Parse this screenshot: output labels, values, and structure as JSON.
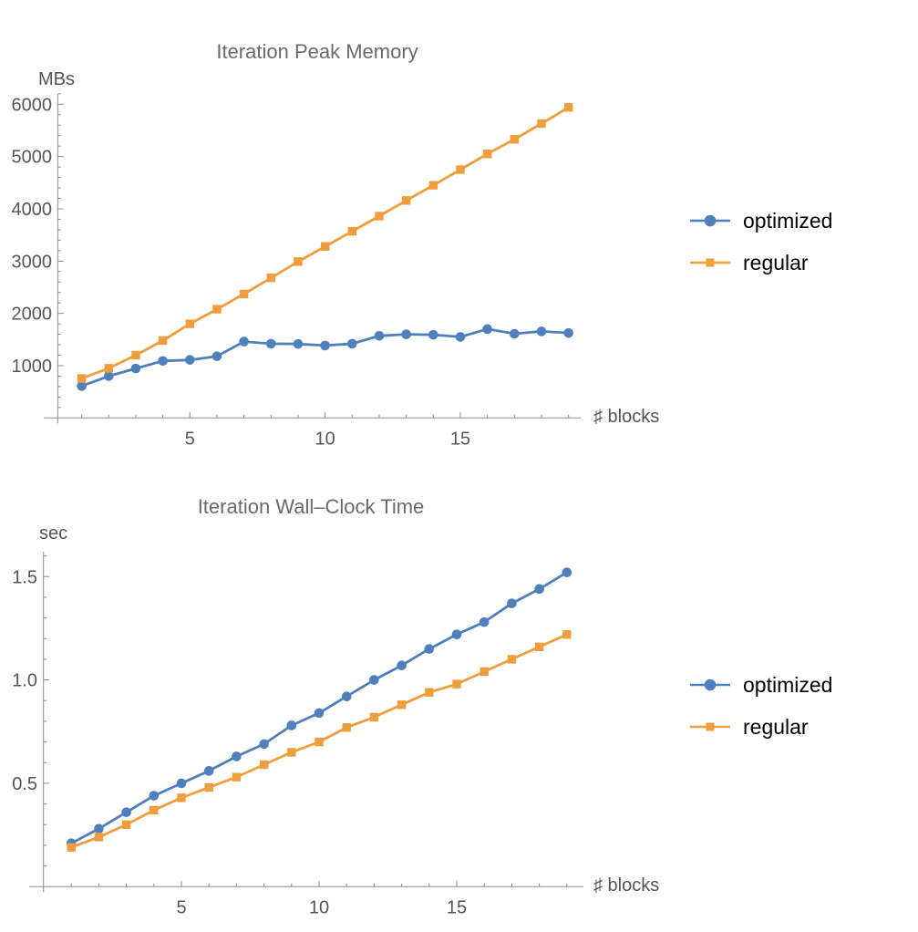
{
  "page": {
    "background": "#ffffff"
  },
  "colors": {
    "optimized": "#4f80bb",
    "regular": "#f09d3e",
    "axis": "#8b8b8b",
    "tick_text": "#565656",
    "title_text": "#6a6a6a",
    "legend_text": "#000000"
  },
  "chart_data": [
    {
      "type": "line",
      "title": "Iteration Peak Memory",
      "ylabel": "MBs",
      "xlabel": "♯ blocks",
      "x": [
        1,
        2,
        3,
        4,
        5,
        6,
        7,
        8,
        9,
        10,
        11,
        12,
        13,
        14,
        15,
        16,
        17,
        18,
        19
      ],
      "series": [
        {
          "name": "optimized",
          "marker": "circle",
          "color": "#4f80bb",
          "values": [
            610,
            800,
            945,
            1090,
            1110,
            1180,
            1460,
            1420,
            1415,
            1385,
            1420,
            1570,
            1600,
            1590,
            1550,
            1700,
            1610,
            1655,
            1625
          ]
        },
        {
          "name": "regular",
          "marker": "square",
          "color": "#f09d3e",
          "values": [
            755,
            950,
            1200,
            1480,
            1800,
            2080,
            2370,
            2680,
            2990,
            3280,
            3570,
            3860,
            4160,
            4450,
            4750,
            5050,
            5330,
            5630,
            5940
          ]
        }
      ],
      "axes": {
        "xticks_labeled": [
          5,
          10,
          15
        ],
        "xtick_labels": [
          "5",
          "10",
          "15"
        ],
        "ytick_minor_step": 200,
        "ytick_max": 6200,
        "yticks_labeled_values": [
          1000,
          2000,
          3000,
          4000,
          5000,
          6000
        ],
        "yticks_labeled": [
          "1000",
          "2000",
          "3000",
          "4000",
          "5000",
          "6000"
        ],
        "xlim": [
          0,
          19.6
        ],
        "ylim": [
          0,
          6200
        ],
        "grid": false
      },
      "legend": {
        "position": "right"
      }
    },
    {
      "type": "line",
      "title": "Iteration Wall–Clock Time",
      "ylabel": "sec",
      "xlabel": "♯ blocks",
      "x": [
        1,
        2,
        3,
        4,
        5,
        6,
        7,
        8,
        9,
        10,
        11,
        12,
        13,
        14,
        15,
        16,
        17,
        18,
        19
      ],
      "series": [
        {
          "name": "optimized",
          "marker": "circle",
          "color": "#4f80bb",
          "values": [
            0.21,
            0.28,
            0.36,
            0.44,
            0.5,
            0.56,
            0.63,
            0.69,
            0.78,
            0.84,
            0.92,
            1.0,
            1.07,
            1.15,
            1.22,
            1.28,
            1.37,
            1.44,
            1.52
          ]
        },
        {
          "name": "regular",
          "marker": "square",
          "color": "#f09d3e",
          "values": [
            0.19,
            0.24,
            0.3,
            0.37,
            0.43,
            0.48,
            0.53,
            0.59,
            0.65,
            0.7,
            0.77,
            0.82,
            0.88,
            0.94,
            0.98,
            1.04,
            1.1,
            1.16,
            1.22
          ]
        }
      ],
      "axes": {
        "xticks_labeled": [
          5,
          10,
          15
        ],
        "xtick_labels": [
          "5",
          "10",
          "15"
        ],
        "ytick_minor_step": 0.1,
        "ytick_max": 1.6,
        "yticks_labeled_values": [
          0.5,
          1.0,
          1.5
        ],
        "yticks_labeled": [
          "0.5",
          "1.0",
          "1.5"
        ],
        "xlim": [
          0,
          19.6
        ],
        "ylim": [
          0,
          1.62
        ],
        "grid": false
      },
      "legend": {
        "position": "right"
      }
    }
  ]
}
